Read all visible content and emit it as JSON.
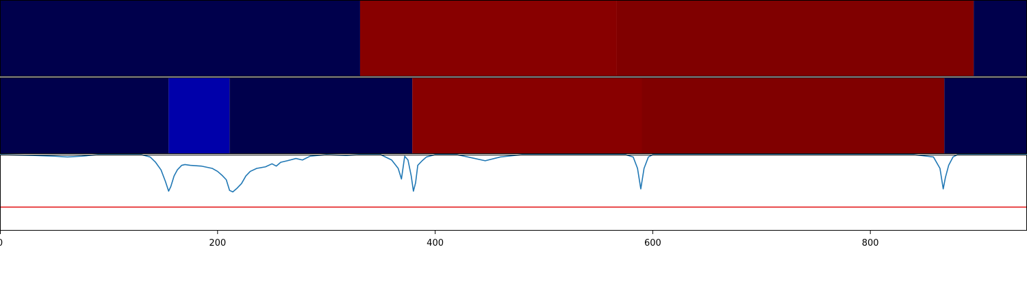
{
  "chart_data": [
    {
      "type": "heatmap",
      "xlim": [
        0,
        944
      ],
      "segments": [
        {
          "start": 0,
          "end": 331,
          "color": "#00004c"
        },
        {
          "start": 331,
          "end": 567,
          "color": "#880000"
        },
        {
          "start": 567,
          "end": 895,
          "color": "#800000"
        },
        {
          "start": 895,
          "end": 944,
          "color": "#00004c"
        }
      ]
    },
    {
      "type": "heatmap",
      "xlim": [
        0,
        944
      ],
      "segments": [
        {
          "start": 0,
          "end": 155,
          "color": "#00004c"
        },
        {
          "start": 155,
          "end": 211,
          "color": "#0000aa"
        },
        {
          "start": 211,
          "end": 379,
          "color": "#00004c"
        },
        {
          "start": 379,
          "end": 590,
          "color": "#880000"
        },
        {
          "start": 590,
          "end": 868,
          "color": "#800000"
        },
        {
          "start": 868,
          "end": 944,
          "color": "#00004c"
        }
      ]
    },
    {
      "type": "line",
      "xlim": [
        0,
        944
      ],
      "ylim": [
        0,
        1
      ],
      "threshold": {
        "y": 0.31,
        "color": "#e31a1c"
      },
      "line_color": "#1f77b4",
      "x": [
        0,
        30,
        50,
        62,
        75,
        90,
        110,
        130,
        138,
        143,
        148,
        152,
        155,
        157,
        160,
        163,
        167,
        170,
        175,
        185,
        195,
        200,
        204,
        208,
        211,
        214,
        218,
        222,
        226,
        230,
        236,
        244,
        250,
        254,
        258,
        264,
        272,
        278,
        285,
        300,
        318,
        330,
        340,
        350,
        360,
        366,
        369,
        372,
        375,
        378,
        380,
        382,
        384,
        388,
        392,
        400,
        420,
        430,
        446,
        460,
        480,
        560,
        575,
        582,
        586,
        589,
        592,
        596,
        600,
        620,
        800,
        840,
        858,
        864,
        867,
        869,
        872,
        876,
        880,
        944
      ],
      "y": [
        1.0,
        0.99,
        0.98,
        0.97,
        0.98,
        1.0,
        1.0,
        1.0,
        0.97,
        0.9,
        0.8,
        0.65,
        0.52,
        0.58,
        0.72,
        0.8,
        0.86,
        0.87,
        0.86,
        0.85,
        0.82,
        0.78,
        0.73,
        0.67,
        0.53,
        0.51,
        0.56,
        0.62,
        0.72,
        0.78,
        0.82,
        0.84,
        0.88,
        0.85,
        0.9,
        0.92,
        0.95,
        0.93,
        0.98,
        1.0,
        0.99,
        1.0,
        1.0,
        1.0,
        0.93,
        0.82,
        0.68,
        0.98,
        0.93,
        0.72,
        0.52,
        0.63,
        0.86,
        0.92,
        0.97,
        1.0,
        1.0,
        0.97,
        0.92,
        0.97,
        1.0,
        1.0,
        1.0,
        0.97,
        0.82,
        0.55,
        0.82,
        0.97,
        1.0,
        1.0,
        1.0,
        1.0,
        0.97,
        0.82,
        0.55,
        0.7,
        0.86,
        0.97,
        1.0,
        1.0
      ]
    }
  ],
  "x_axis": {
    "ticks": [
      0,
      200,
      400,
      600,
      800
    ],
    "labels": [
      "0",
      "200",
      "400",
      "600",
      "800"
    ]
  }
}
